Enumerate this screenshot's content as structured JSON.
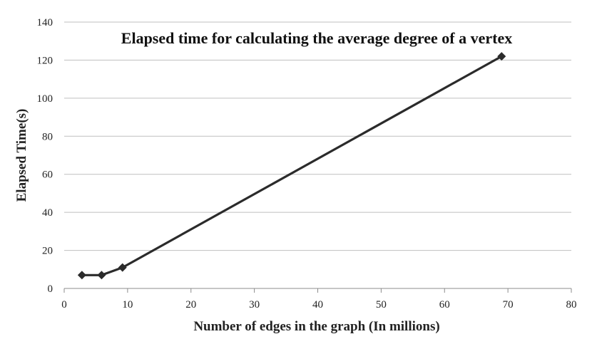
{
  "chart_data": {
    "type": "line",
    "title": "Elapsed time for calculating the average degree of a vertex",
    "xlabel": "Number of edges in the graph (In millions)",
    "ylabel": "Elapsed Time(s)",
    "xlim": [
      0,
      80
    ],
    "ylim": [
      0,
      140
    ],
    "xticks": [
      0,
      10,
      20,
      30,
      40,
      50,
      60,
      70,
      80
    ],
    "yticks": [
      0,
      20,
      40,
      60,
      80,
      100,
      120,
      140
    ],
    "grid": "horizontal",
    "legend": "none",
    "series": [
      {
        "x": [
          2.8,
          5.9,
          9.2,
          69
        ],
        "y": [
          7,
          7,
          11,
          122
        ],
        "marker": "diamond",
        "color": "#2b2b2b"
      }
    ],
    "colors": {
      "grid": "#bfbfbf",
      "axis": "#8c8c8c",
      "line": "#2b2b2b"
    }
  }
}
